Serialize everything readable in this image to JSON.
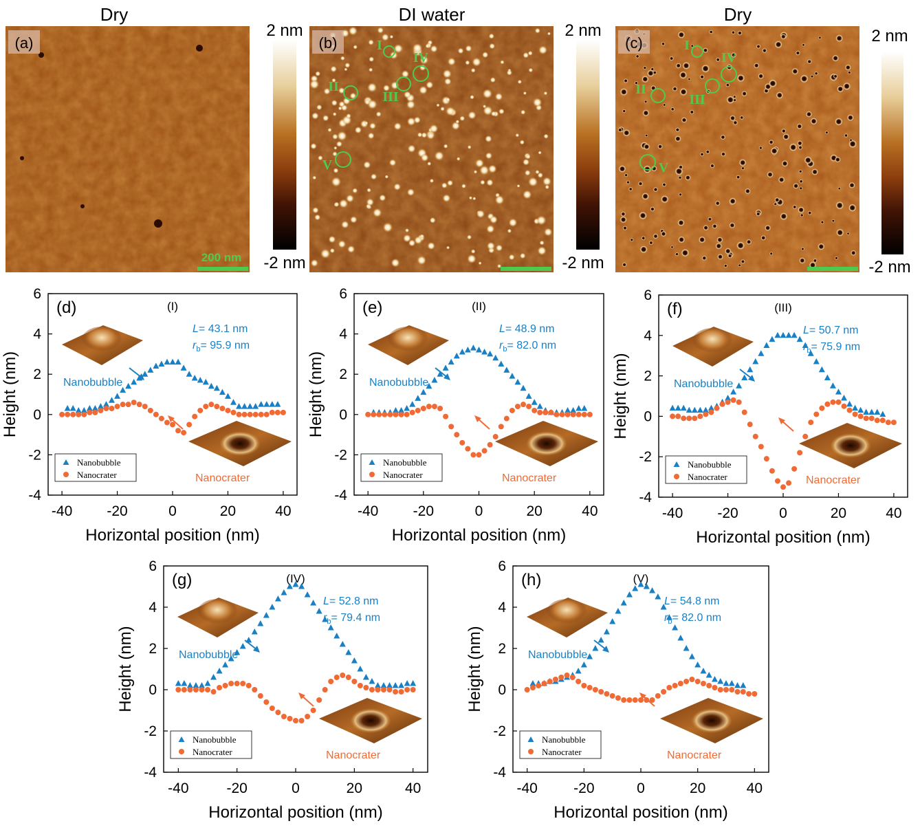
{
  "colors": {
    "nanobubble": "#1a80c4",
    "nanocrater": "#f06a35",
    "annotation_green": "#4ecb4e",
    "afm_background": "#a5571a"
  },
  "afm_panels": [
    {
      "tag": "(a)",
      "title": "Dry",
      "scale_bar": "200 nm",
      "circles": []
    },
    {
      "tag": "(b)",
      "title": "DI water",
      "scale_bar": "",
      "circles": [
        {
          "label": "I"
        },
        {
          "label": "II"
        },
        {
          "label": "III"
        },
        {
          "label": "IV"
        },
        {
          "label": "V"
        }
      ]
    },
    {
      "tag": "(c)",
      "title": "Dry",
      "scale_bar": "",
      "circles": [
        {
          "label": "I"
        },
        {
          "label": "II"
        },
        {
          "label": "III"
        },
        {
          "label": "IV"
        },
        {
          "label": "V"
        }
      ]
    }
  ],
  "colorbar": {
    "max_label": "2 nm",
    "min_label": "-2 nm"
  },
  "chart_data": [
    {
      "type": "scatter",
      "tag": "(d)",
      "title": "(I)",
      "xlabel": "Horizontal position (nm)",
      "ylabel": "Height (nm)",
      "xlim": [
        -45,
        45
      ],
      "ylim": [
        -4,
        6
      ],
      "xticks": [
        "-40",
        "-20",
        "0",
        "20",
        "40"
      ],
      "yticks": [
        "-4",
        "-2",
        "0",
        "2",
        "4",
        "6"
      ],
      "L_label": "L",
      "L": "= 43.1 nm",
      "rb_label": "r",
      "rb_sub": "b",
      "rb": "= 95.9 nm",
      "legend": [
        "Nanobubble",
        "Nanocrater"
      ],
      "label_nanobubble": "Nanobubble",
      "label_nanocrater": "Nanocrater",
      "series": [
        {
          "name": "Nanobubble",
          "x": [
            -38,
            -36,
            -34,
            -32,
            -30,
            -28,
            -26,
            -24,
            -22,
            -20,
            -18,
            -16,
            -14,
            -12,
            -10,
            -8,
            -6,
            -4,
            -2,
            0,
            2,
            4,
            6,
            8,
            10,
            12,
            14,
            16,
            18,
            20,
            22,
            24,
            26,
            28,
            30,
            32,
            34,
            36,
            38
          ],
          "y": [
            0.3,
            0.3,
            0.2,
            0.2,
            0.3,
            0.3,
            0.4,
            0.5,
            0.7,
            0.9,
            1.2,
            1.4,
            1.6,
            1.8,
            2.0,
            2.2,
            2.4,
            2.5,
            2.6,
            2.6,
            2.6,
            2.3,
            2.0,
            1.8,
            1.7,
            1.6,
            1.4,
            1.3,
            1.1,
            0.9,
            0.6,
            0.4,
            0.4,
            0.4,
            0.4,
            0.5,
            0.5,
            0.5,
            0.5
          ]
        },
        {
          "name": "Nanocrater",
          "x": [
            -40,
            -38,
            -36,
            -34,
            -32,
            -30,
            -28,
            -26,
            -24,
            -22,
            -20,
            -18,
            -16,
            -14,
            -12,
            -10,
            -8,
            -6,
            -4,
            -2,
            0,
            2,
            4,
            6,
            8,
            10,
            12,
            14,
            16,
            18,
            20,
            22,
            24,
            26,
            28,
            30,
            32,
            34,
            36,
            38,
            40
          ],
          "y": [
            0.0,
            0.0,
            0.0,
            0.0,
            0.0,
            0.1,
            0.1,
            0.2,
            0.3,
            0.3,
            0.4,
            0.5,
            0.5,
            0.6,
            0.5,
            0.4,
            0.2,
            0.0,
            -0.2,
            -0.4,
            -0.5,
            -0.8,
            -0.9,
            -0.5,
            -0.1,
            0.2,
            0.4,
            0.5,
            0.4,
            0.3,
            0.2,
            0.1,
            0.0,
            0.0,
            0.0,
            0.0,
            0.0,
            0.0,
            0.1,
            0.1,
            0.1
          ]
        }
      ]
    },
    {
      "type": "scatter",
      "tag": "(e)",
      "title": "(II)",
      "xlabel": "Horizontal position (nm)",
      "ylabel": "Height (nm)",
      "xlim": [
        -45,
        45
      ],
      "ylim": [
        -4,
        6
      ],
      "xticks": [
        "-40",
        "-20",
        "0",
        "20",
        "40"
      ],
      "yticks": [
        "-4",
        "-2",
        "0",
        "2",
        "4",
        "6"
      ],
      "L_label": "L",
      "L": "= 48.9 nm",
      "rb_label": "r",
      "rb_sub": "b",
      "rb": "= 82.0 nm",
      "legend": [
        "Nanobubble",
        "Nanocrater"
      ],
      "label_nanobubble": "Nanobubble",
      "label_nanocrater": "Nanocrater",
      "series": [
        {
          "name": "Nanobubble",
          "x": [
            -38,
            -36,
            -34,
            -32,
            -30,
            -28,
            -26,
            -24,
            -22,
            -20,
            -18,
            -16,
            -14,
            -12,
            -10,
            -8,
            -6,
            -4,
            -2,
            0,
            2,
            4,
            6,
            8,
            10,
            12,
            14,
            16,
            18,
            20,
            22,
            24,
            26,
            28,
            30,
            32,
            34,
            36,
            38
          ],
          "y": [
            0.1,
            0.1,
            0.1,
            0.1,
            0.2,
            0.2,
            0.3,
            0.5,
            0.8,
            1.1,
            1.4,
            1.7,
            2.0,
            2.3,
            2.6,
            2.9,
            3.1,
            3.2,
            3.3,
            3.2,
            3.1,
            3.0,
            2.8,
            2.5,
            2.2,
            1.9,
            1.6,
            1.3,
            0.9,
            0.6,
            0.4,
            0.2,
            0.1,
            0.1,
            0.1,
            0.2,
            0.2,
            0.3,
            0.3
          ]
        },
        {
          "name": "Nanocrater",
          "x": [
            -40,
            -38,
            -36,
            -34,
            -32,
            -30,
            -28,
            -26,
            -24,
            -22,
            -20,
            -18,
            -16,
            -14,
            -12,
            -10,
            -8,
            -6,
            -4,
            -2,
            0,
            2,
            4,
            6,
            8,
            10,
            12,
            14,
            16,
            18,
            20,
            22,
            24,
            26,
            28,
            30,
            32,
            34,
            36,
            38,
            40
          ],
          "y": [
            0.0,
            0.0,
            0.0,
            0.0,
            0.0,
            0.0,
            0.0,
            0.0,
            0.1,
            0.2,
            0.3,
            0.4,
            0.4,
            0.3,
            -0.1,
            -0.6,
            -1.0,
            -1.4,
            -1.7,
            -2.0,
            -2.0,
            -1.8,
            -1.5,
            -1.1,
            -0.6,
            -0.2,
            0.2,
            0.4,
            0.5,
            0.4,
            0.2,
            0.1,
            0.1,
            0.1,
            0.0,
            0.0,
            0.0,
            0.0,
            0.0,
            0.0,
            0.0
          ]
        }
      ]
    },
    {
      "type": "scatter",
      "tag": "(f)",
      "title": "(III)",
      "xlabel": "Horizontal position (nm)",
      "ylabel": "Height (nm)",
      "xlim": [
        -45,
        45
      ],
      "ylim": [
        -4,
        6
      ],
      "xticks": [
        "-40",
        "-20",
        "0",
        "20",
        "40"
      ],
      "yticks": [
        "-4",
        "-2",
        "0",
        "2",
        "4",
        "6"
      ],
      "L_label": "L",
      "L": "= 50.7 nm",
      "rb_label": "r",
      "rb_sub": "b",
      "rb": "= 75.9 nm",
      "legend": [
        "Nanobubble",
        "Nanocrater"
      ],
      "label_nanobubble": "Nanobubble",
      "label_nanocrater": "Nanocrater",
      "series": [
        {
          "name": "Nanobubble",
          "x": [
            -40,
            -38,
            -36,
            -34,
            -32,
            -30,
            -28,
            -26,
            -24,
            -22,
            -20,
            -18,
            -16,
            -14,
            -12,
            -10,
            -8,
            -6,
            -4,
            -2,
            0,
            2,
            4,
            6,
            8,
            10,
            12,
            14,
            16,
            18,
            20,
            22,
            24,
            26,
            28,
            30,
            32,
            34,
            36
          ],
          "y": [
            0.4,
            0.4,
            0.4,
            0.3,
            0.3,
            0.3,
            0.3,
            0.4,
            0.5,
            0.7,
            0.9,
            1.2,
            1.5,
            1.9,
            2.3,
            2.7,
            3.1,
            3.5,
            3.8,
            4.0,
            4.0,
            4.0,
            4.0,
            3.8,
            3.5,
            3.1,
            2.7,
            2.3,
            1.9,
            1.5,
            1.2,
            0.9,
            0.6,
            0.4,
            0.3,
            0.2,
            0.2,
            0.2,
            0.1
          ]
        },
        {
          "name": "Nanocrater",
          "x": [
            -40,
            -38,
            -36,
            -34,
            -32,
            -30,
            -28,
            -26,
            -24,
            -22,
            -20,
            -18,
            -16,
            -14,
            -12,
            -10,
            -8,
            -6,
            -4,
            -2,
            0,
            2,
            4,
            6,
            8,
            10,
            12,
            14,
            16,
            18,
            20,
            22,
            24,
            26,
            28,
            30,
            32,
            34,
            36,
            38,
            40
          ],
          "y": [
            0.0,
            0.0,
            -0.1,
            -0.1,
            -0.1,
            0.0,
            0.1,
            0.2,
            0.4,
            0.6,
            0.7,
            0.8,
            0.7,
            0.2,
            -0.4,
            -1.0,
            -1.5,
            -2.1,
            -2.7,
            -3.2,
            -3.5,
            -3.3,
            -2.6,
            -1.8,
            -1.0,
            -0.3,
            0.1,
            0.4,
            0.6,
            0.7,
            0.7,
            0.5,
            0.3,
            0.1,
            0.0,
            -0.1,
            -0.1,
            -0.2,
            -0.2,
            -0.3,
            -0.3
          ]
        }
      ]
    },
    {
      "type": "scatter",
      "tag": "(g)",
      "title": "(IV)",
      "xlabel": "Horizontal position (nm)",
      "ylabel": "Height (nm)",
      "xlim": [
        -45,
        45
      ],
      "ylim": [
        -4,
        6
      ],
      "xticks": [
        "-40",
        "-20",
        "0",
        "20",
        "40"
      ],
      "yticks": [
        "-4",
        "-2",
        "0",
        "2",
        "4",
        "6"
      ],
      "L_label": "L",
      "L": "= 52.8 nm",
      "rb_label": "r",
      "rb_sub": "b",
      "rb": "= 79.4 nm",
      "legend": [
        "Nanobubble",
        "Nanocrater"
      ],
      "label_nanobubble": "Nanobubble",
      "label_nanocrater": "Nanocrater",
      "series": [
        {
          "name": "Nanobubble",
          "x": [
            -40,
            -38,
            -36,
            -34,
            -32,
            -30,
            -28,
            -26,
            -24,
            -22,
            -20,
            -18,
            -16,
            -14,
            -12,
            -10,
            -8,
            -6,
            -4,
            -2,
            0,
            2,
            4,
            6,
            8,
            10,
            12,
            14,
            16,
            18,
            20,
            22,
            24,
            26,
            28,
            30,
            32,
            34,
            36,
            38,
            40
          ],
          "y": [
            0.3,
            0.3,
            0.2,
            0.2,
            0.2,
            0.3,
            0.6,
            0.9,
            1.2,
            1.5,
            1.8,
            2.1,
            2.4,
            2.8,
            3.2,
            3.6,
            4.0,
            4.4,
            4.7,
            5.0,
            5.1,
            5.0,
            4.6,
            4.2,
            3.8,
            3.4,
            3.0,
            2.6,
            2.2,
            1.8,
            1.4,
            1.0,
            0.6,
            0.4,
            0.2,
            0.2,
            0.2,
            0.2,
            0.2,
            0.3,
            0.3
          ]
        },
        {
          "name": "Nanocrater",
          "x": [
            -40,
            -38,
            -36,
            -34,
            -32,
            -30,
            -28,
            -26,
            -24,
            -22,
            -20,
            -18,
            -16,
            -14,
            -12,
            -10,
            -8,
            -6,
            -4,
            -2,
            0,
            2,
            4,
            6,
            8,
            10,
            12,
            14,
            16,
            18,
            20,
            22,
            24,
            26,
            28,
            30,
            32,
            34,
            36,
            38,
            40
          ],
          "y": [
            0.0,
            0.0,
            0.0,
            0.0,
            0.0,
            0.0,
            -0.1,
            0.1,
            0.2,
            0.3,
            0.3,
            0.3,
            0.2,
            0.0,
            -0.3,
            -0.6,
            -0.9,
            -1.1,
            -1.3,
            -1.4,
            -1.5,
            -1.5,
            -1.3,
            -1.0,
            -0.5,
            0.0,
            0.4,
            0.6,
            0.7,
            0.6,
            0.4,
            0.2,
            0.1,
            0.0,
            0.0,
            0.0,
            0.0,
            -0.1,
            -0.1,
            0.0,
            0.0
          ]
        }
      ]
    },
    {
      "type": "scatter",
      "tag": "(h)",
      "title": "(V)",
      "xlabel": "Horizontal position (nm)",
      "ylabel": "Height (nm)",
      "xlim": [
        -45,
        45
      ],
      "ylim": [
        -4,
        6
      ],
      "xticks": [
        "-40",
        "-20",
        "0",
        "20",
        "40"
      ],
      "yticks": [
        "-4",
        "-2",
        "0",
        "2",
        "4",
        "6"
      ],
      "L_label": "L",
      "L": "= 54.8 nm",
      "rb_label": "r",
      "rb_sub": "b",
      "rb": "= 82.0 nm",
      "legend": [
        "Nanobubble",
        "Nanocrater"
      ],
      "label_nanobubble": "Nanobubble",
      "label_nanocrater": "Nanocrater",
      "series": [
        {
          "name": "Nanobubble",
          "x": [
            -38,
            -36,
            -34,
            -32,
            -30,
            -28,
            -26,
            -24,
            -22,
            -20,
            -18,
            -16,
            -14,
            -12,
            -10,
            -8,
            -6,
            -4,
            -2,
            0,
            2,
            4,
            6,
            8,
            10,
            12,
            14,
            16,
            18,
            20,
            22,
            24,
            26,
            28,
            30,
            32,
            34,
            36
          ],
          "y": [
            0.3,
            0.3,
            0.3,
            0.4,
            0.4,
            0.5,
            0.6,
            0.7,
            0.9,
            1.2,
            1.6,
            2.0,
            2.4,
            2.8,
            3.3,
            3.8,
            4.2,
            4.6,
            4.9,
            5.1,
            5.0,
            4.8,
            4.5,
            4.0,
            3.5,
            3.0,
            2.5,
            2.0,
            1.6,
            1.2,
            0.9,
            0.7,
            0.5,
            0.4,
            0.3,
            0.3,
            0.2,
            0.2
          ]
        },
        {
          "name": "Nanocrater",
          "x": [
            -40,
            -38,
            -36,
            -34,
            -32,
            -30,
            -28,
            -26,
            -24,
            -22,
            -20,
            -18,
            -16,
            -14,
            -12,
            -10,
            -8,
            -6,
            -4,
            -2,
            0,
            2,
            4,
            6,
            8,
            10,
            12,
            14,
            16,
            18,
            20,
            22,
            24,
            26,
            28,
            30,
            32,
            34,
            36,
            38,
            40
          ],
          "y": [
            0.0,
            0.1,
            0.2,
            0.3,
            0.4,
            0.5,
            0.6,
            0.7,
            0.6,
            0.4,
            0.2,
            0.1,
            0.0,
            -0.1,
            -0.2,
            -0.3,
            -0.4,
            -0.5,
            -0.5,
            -0.5,
            -0.5,
            -0.5,
            -0.5,
            -0.3,
            -0.1,
            0.1,
            0.2,
            0.3,
            0.4,
            0.5,
            0.4,
            0.3,
            0.2,
            0.1,
            0.0,
            0.0,
            0.0,
            -0.1,
            -0.1,
            -0.2,
            -0.2
          ]
        }
      ]
    }
  ]
}
